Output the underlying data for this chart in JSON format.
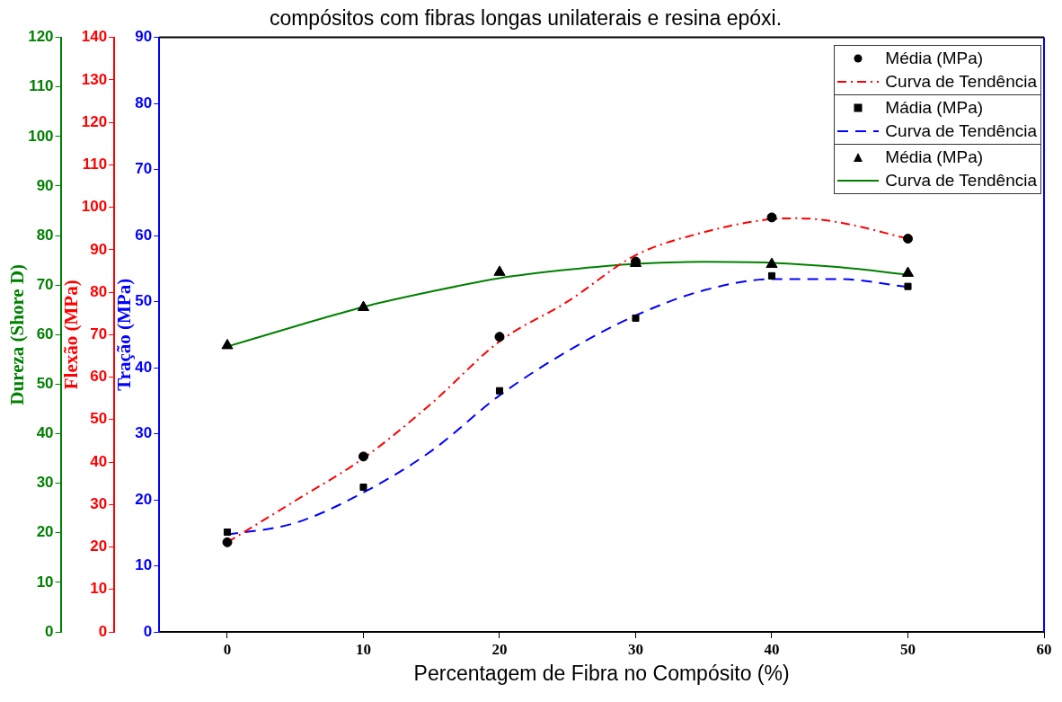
{
  "chart_data": {
    "type": "line",
    "title": "compósitos com fibras longas unilaterais e resina epóxi.",
    "xlabel": "Percentagem de Fibra no Compósito (%)",
    "ylabel": "Tração (MPa)",
    "y2label": "Flexão (MPa)",
    "y3label": "Dureza (Shore D)",
    "xlim": [
      -5,
      60
    ],
    "xticks": [
      0,
      10,
      20,
      30,
      40,
      50,
      60
    ],
    "ylim": [
      0,
      90
    ],
    "yticks": [
      0,
      10,
      20,
      30,
      40,
      50,
      60,
      70,
      80,
      90
    ],
    "y2lim": [
      0,
      140
    ],
    "y2ticks": [
      0,
      10,
      20,
      30,
      40,
      50,
      60,
      70,
      80,
      90,
      100,
      110,
      120,
      130,
      140
    ],
    "y3lim": [
      0,
      120
    ],
    "y3ticks": [
      0,
      10,
      20,
      30,
      40,
      50,
      60,
      70,
      80,
      90,
      100,
      110,
      120
    ],
    "grid": false,
    "legend": "top right",
    "series": [
      {
        "name": "Média (MPa)",
        "type": "scatter",
        "marker": "circle",
        "color": "#000000",
        "axis": "y2",
        "x": [
          0,
          10,
          20,
          30,
          40,
          50
        ],
        "values": [
          21.1,
          41.3,
          69.5,
          87.2,
          97.6,
          92.6
        ]
      },
      {
        "name": "Curva de Tendência",
        "type": "line",
        "marker": "none",
        "line_style": "dashdot",
        "color": "#ff0000",
        "axis": "y2",
        "x": [
          0,
          5,
          10,
          15,
          20,
          25,
          30,
          35,
          40,
          42,
          45,
          50
        ],
        "values": [
          21.1,
          30.9,
          40.9,
          53.8,
          68.4,
          77.8,
          88.7,
          94.1,
          97.2,
          97.4,
          96.4,
          92.6
        ]
      },
      {
        "name": "Mádia (MPa)",
        "type": "scatter",
        "marker": "square",
        "color": "#000000",
        "axis": "y",
        "x": [
          0,
          10,
          20,
          30,
          40,
          50
        ],
        "values": [
          15.1,
          21.9,
          36.5,
          47.5,
          53.9,
          52.3
        ]
      },
      {
        "name": "Curva de Tendência",
        "type": "line",
        "marker": "none",
        "line_style": "dashed",
        "color": "#0000ff",
        "axis": "y",
        "x": [
          0,
          5,
          10,
          15,
          20,
          25,
          30,
          35,
          40,
          45,
          50
        ],
        "values": [
          14.7,
          16.5,
          21.1,
          27.4,
          35.8,
          42.5,
          47.9,
          51.7,
          53.4,
          53.4,
          52.2
        ]
      },
      {
        "name": "Média (MPa)",
        "type": "scatter",
        "marker": "triangle",
        "color": "#000000",
        "axis": "y3",
        "x": [
          0,
          10,
          20,
          30,
          40,
          50
        ],
        "values": [
          57.8,
          65.5,
          72.6,
          74.4,
          74.2,
          72.4
        ]
      },
      {
        "name": "Curva de Tendência",
        "type": "line",
        "marker": "none",
        "line_style": "solid",
        "color": "#008000",
        "axis": "y3",
        "x": [
          0,
          5,
          10,
          15,
          20,
          25,
          30,
          35,
          40,
          45,
          50
        ],
        "values": [
          57.6,
          61.7,
          65.6,
          68.7,
          71.4,
          73.1,
          74.3,
          74.7,
          74.5,
          73.6,
          72.1
        ]
      }
    ]
  }
}
